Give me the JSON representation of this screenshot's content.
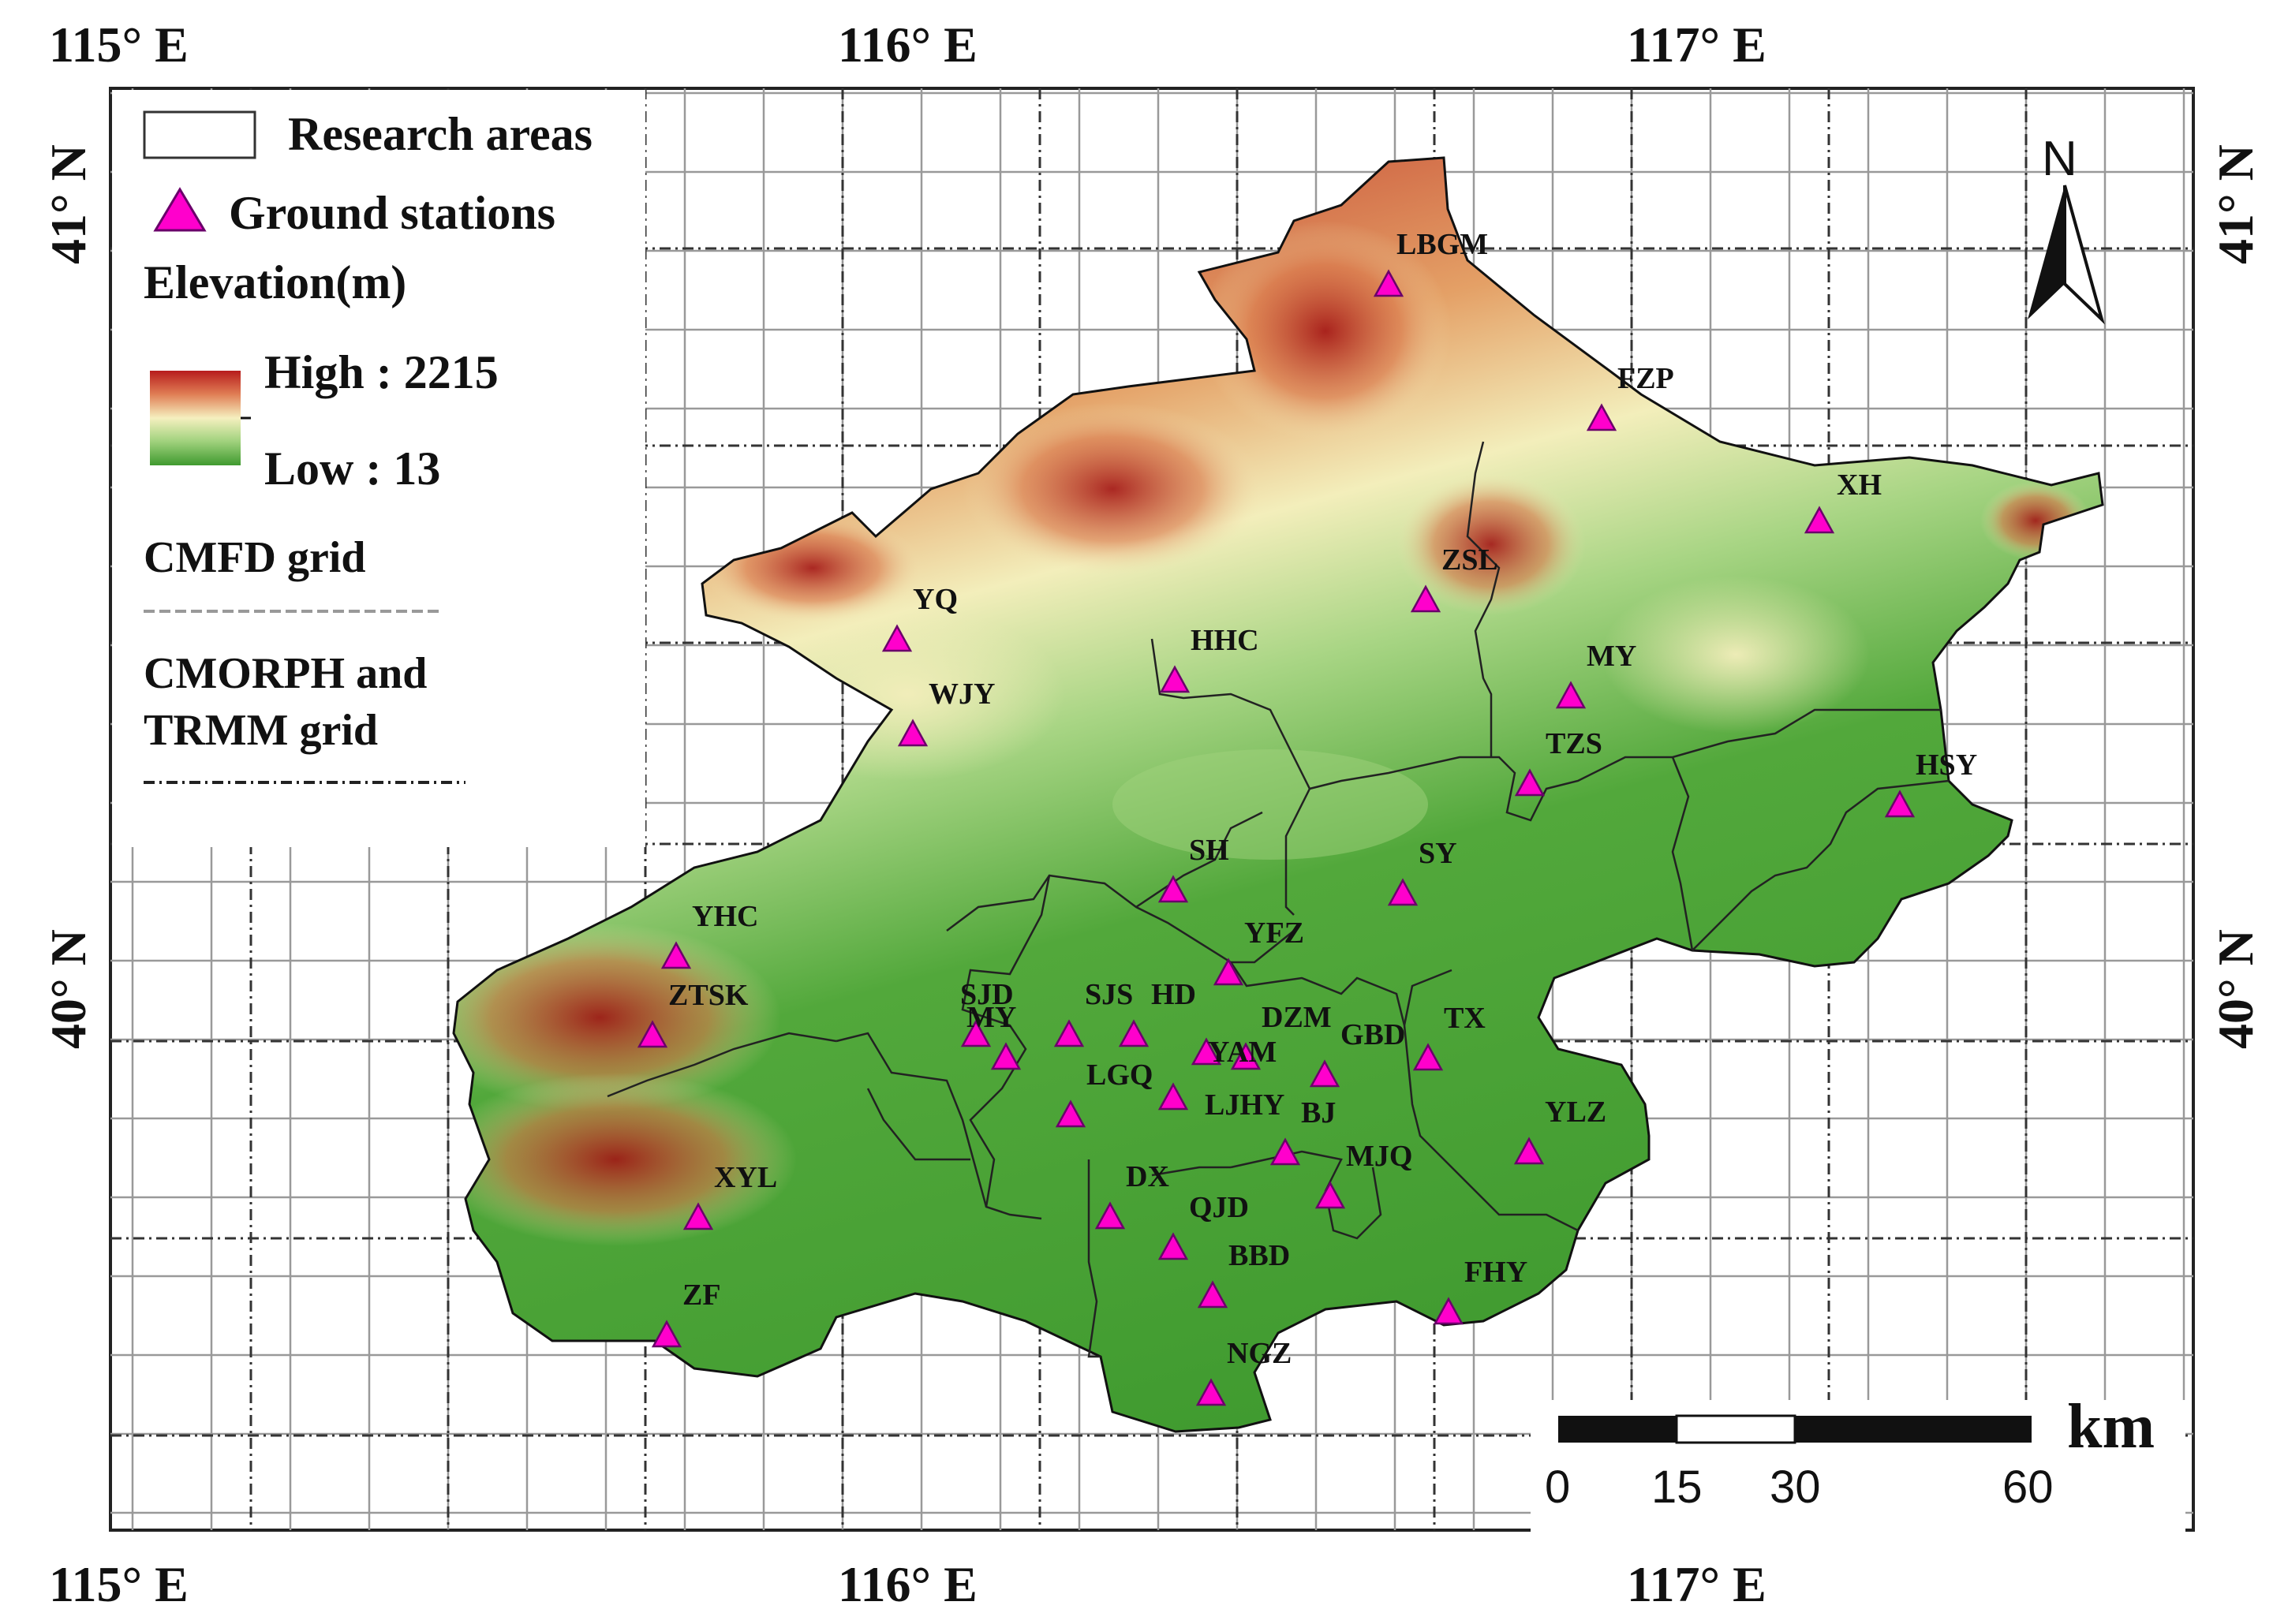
{
  "map": {
    "lon_ticks": [
      "115° E",
      "116° E",
      "117° E"
    ],
    "lat_ticks": [
      "41° N",
      "40° N"
    ],
    "north_arrow_label": "N"
  },
  "legend": {
    "research_areas": "Research areas",
    "ground_stations": "Ground stations",
    "elevation_title": "Elevation(m)",
    "high_label": "High : 2215",
    "low_label": "Low : 13",
    "cmfd_label": "CMFD grid",
    "cmorph_label_1": "CMORPH and",
    "cmorph_label_2": "TRMM grid",
    "colors": {
      "high": "#b71c1c",
      "mid": "#f5f0bf",
      "low": "#3f9a2f"
    }
  },
  "scale_bar": {
    "unit": "km",
    "ticks": [
      "0",
      "15",
      "30",
      "60"
    ]
  },
  "stations": [
    {
      "name": "LBGM"
    },
    {
      "name": "FZP"
    },
    {
      "name": "XH"
    },
    {
      "name": "ZSL"
    },
    {
      "name": "YQ"
    },
    {
      "name": "HHC"
    },
    {
      "name": "MY"
    },
    {
      "name": "WJY"
    },
    {
      "name": "TZS"
    },
    {
      "name": "HSY"
    },
    {
      "name": "SH"
    },
    {
      "name": "SY"
    },
    {
      "name": "YFZ"
    },
    {
      "name": "YHC"
    },
    {
      "name": "ZTSK"
    },
    {
      "name": "SJD"
    },
    {
      "name": "MY"
    },
    {
      "name": "SJS"
    },
    {
      "name": "HD"
    },
    {
      "name": "DZM"
    },
    {
      "name": "TX"
    },
    {
      "name": "YAM"
    },
    {
      "name": "GBD"
    },
    {
      "name": "LGQ"
    },
    {
      "name": "LJHY"
    },
    {
      "name": "BJ"
    },
    {
      "name": "YLZ"
    },
    {
      "name": "MJQ"
    },
    {
      "name": "XYL"
    },
    {
      "name": "DX"
    },
    {
      "name": "QJD"
    },
    {
      "name": "BBD"
    },
    {
      "name": "FHY"
    },
    {
      "name": "ZF"
    },
    {
      "name": "NGZ"
    }
  ],
  "colors": {
    "station_fill": "#ff00cc",
    "station_stroke": "#6a006a"
  }
}
